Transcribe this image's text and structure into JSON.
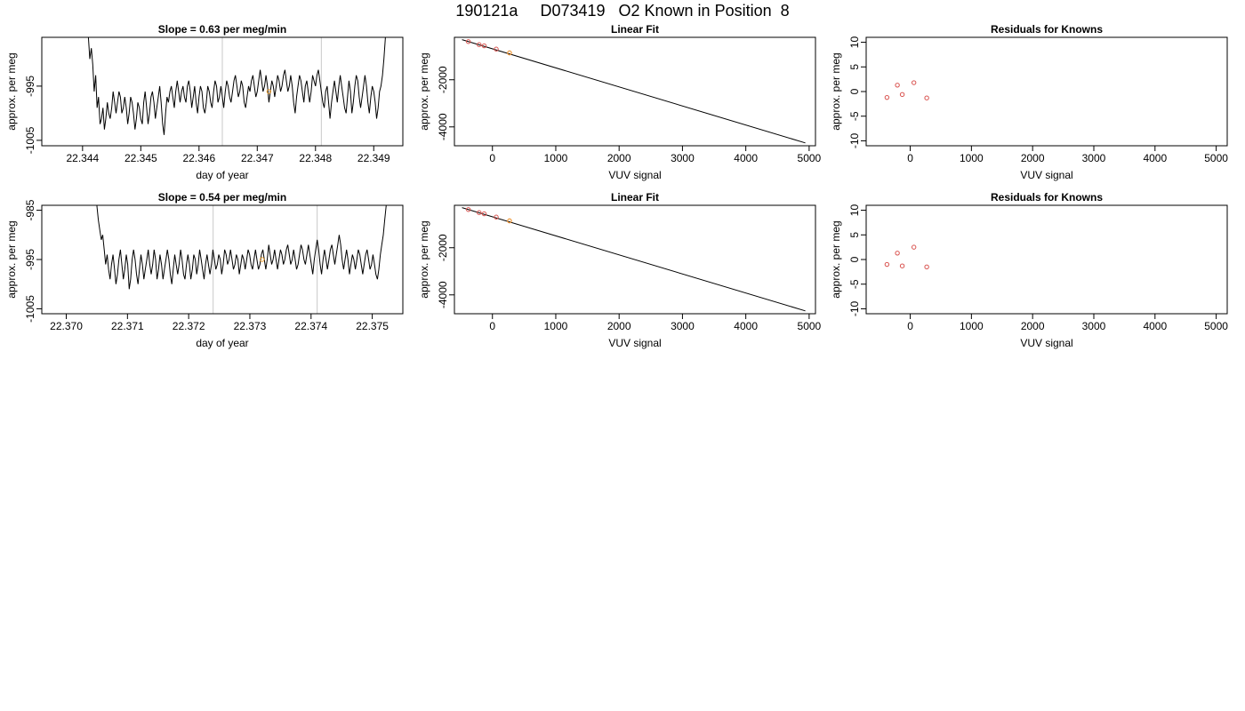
{
  "page": {
    "title": "190121a     D073419   O2 Known in Position  8"
  },
  "colors": {
    "trace": "#000000",
    "guide": "#c8c8c8",
    "known_point": "#d9534f",
    "sample_point": "#f0a030",
    "frame": "#000000"
  },
  "chart_data": [
    {
      "id": "trace-1",
      "type": "line",
      "title": "Slope =  0.63  per meg/min",
      "xlabel": "day of year",
      "ylabel": "approx. per meg",
      "xlim": [
        22.3433,
        22.3495
      ],
      "ylim": [
        -1006,
        -986
      ],
      "xticks": [
        22.344,
        22.345,
        22.346,
        22.347,
        22.348,
        22.349
      ],
      "xtick_labels": [
        "22.344",
        "22.345",
        "22.346",
        "22.347",
        "22.348",
        "22.349"
      ],
      "yticks": [
        -1005,
        -995
      ],
      "ytick_labels": [
        "-1005",
        "-995"
      ],
      "vlines": [
        22.3464,
        22.3481
      ],
      "series_x_start": 22.3441,
      "series_x_step": 2.5e-05,
      "series": [
        -986,
        -990,
        -988,
        -991,
        -996,
        -993,
        -999,
        -997,
        -1002,
        -1001,
        -999,
        -1003,
        -1001,
        -998,
        -1000,
        -1001,
        -999,
        -996,
        -998,
        -1000,
        -998,
        -996,
        -997,
        -1000,
        -999,
        -997,
        -999,
        -1002,
        -1000,
        -997,
        -998,
        -1000,
        -1003,
        -1001,
        -998,
        -999,
        -1001,
        -1002,
        -998,
        -996,
        -999,
        -1002,
        -1000,
        -997,
        -996,
        -998,
        -1001,
        -999,
        -997,
        -995,
        -998,
        -1002,
        -1004,
        -1000,
        -997,
        -998,
        -996,
        -995,
        -997,
        -999,
        -996,
        -994,
        -996,
        -998,
        -996,
        -995,
        -997,
        -998,
        -995,
        -994,
        -996,
        -999,
        -997,
        -995,
        -998,
        -1000,
        -997,
        -995,
        -996,
        -999,
        -1000,
        -998,
        -995,
        -996,
        -998,
        -999,
        -996,
        -994,
        -995,
        -998,
        -997,
        -995,
        -997,
        -999,
        -996,
        -994,
        -995,
        -997,
        -998,
        -996,
        -994,
        -993,
        -995,
        -997,
        -996,
        -994,
        -995,
        -998,
        -999,
        -997,
        -995,
        -996,
        -994,
        -993,
        -995,
        -997,
        -996,
        -994,
        -992,
        -994,
        -996,
        -995,
        -993,
        -995,
        -998,
        -996,
        -994,
        -995,
        -997,
        -995,
        -993,
        -994,
        -996,
        -995,
        -993,
        -992,
        -994,
        -996,
        -995,
        -993,
        -995,
        -998,
        -1000,
        -997,
        -995,
        -993,
        -994,
        -996,
        -998,
        -995,
        -994,
        -996,
        -998,
        -996,
        -993,
        -994,
        -995,
        -993,
        -992,
        -994,
        -996,
        -998,
        -999,
        -996,
        -995,
        -998,
        -1001,
        -998,
        -996,
        -994,
        -996,
        -998,
        -995,
        -993,
        -995,
        -997,
        -999,
        -1000,
        -997,
        -994,
        -996,
        -1000,
        -998,
        -995,
        -993,
        -994,
        -997,
        -999,
        -997,
        -995,
        -993,
        -995,
        -998,
        -1000,
        -997,
        -995,
        -996,
        -998,
        -1001,
        -999,
        -996,
        -995,
        -993,
        -990,
        -986
      ],
      "sample_points": [
        {
          "x": 22.3472,
          "y": -996
        }
      ]
    },
    {
      "id": "fit-1",
      "type": "scatter",
      "title": "Linear Fit",
      "xlabel": "VUV signal",
      "ylabel": "approx. per meg",
      "xlim": [
        -600,
        5100
      ],
      "ylim": [
        -4800,
        -200
      ],
      "xticks": [
        0,
        1000,
        2000,
        3000,
        4000,
        5000
      ],
      "xtick_labels": [
        "0",
        "1000",
        "2000",
        "3000",
        "4000",
        "5000"
      ],
      "yticks": [
        -4000,
        -2000
      ],
      "ytick_labels": [
        "-4000",
        "-2000"
      ],
      "fit_line": [
        [
          -480,
          -300
        ],
        [
          4940,
          -4680
        ]
      ],
      "known_points": [
        [
          -380,
          -380
        ],
        [
          -210,
          -510
        ],
        [
          -130,
          -560
        ],
        [
          60,
          -700
        ],
        [
          270,
          -860
        ]
      ],
      "sample_points": [
        [
          270,
          -860
        ]
      ]
    },
    {
      "id": "resid-1",
      "type": "scatter",
      "title": "Residuals for Knowns",
      "xlabel": "VUV signal",
      "ylabel": "approx. per meg",
      "xlim": [
        -720,
        5180
      ],
      "ylim": [
        -11,
        11
      ],
      "xticks": [
        0,
        1000,
        2000,
        3000,
        4000,
        5000
      ],
      "xtick_labels": [
        "0",
        "1000",
        "2000",
        "3000",
        "4000",
        "5000"
      ],
      "yticks": [
        -10,
        -5,
        0,
        5,
        10
      ],
      "ytick_labels": [
        "-10",
        "-5",
        "0",
        "5",
        "10"
      ],
      "points": [
        [
          -380,
          -1.2
        ],
        [
          -210,
          1.3
        ],
        [
          -130,
          -0.6
        ],
        [
          60,
          1.8
        ],
        [
          270,
          -1.3
        ]
      ]
    },
    {
      "id": "trace-2",
      "type": "line",
      "title": "Slope =  0.54  per meg/min",
      "xlabel": "day of year",
      "ylabel": "approx. per meg",
      "xlim": [
        22.3696,
        22.3755
      ],
      "ylim": [
        -1006,
        -984
      ],
      "xticks": [
        22.37,
        22.371,
        22.372,
        22.373,
        22.374,
        22.375
      ],
      "xtick_labels": [
        "22.370",
        "22.371",
        "22.372",
        "22.373",
        "22.374",
        "22.375"
      ],
      "yticks": [
        -1005,
        -995,
        -985
      ],
      "ytick_labels": [
        "-1005",
        "-995",
        "-985"
      ],
      "vlines": [
        22.3724,
        22.3741
      ],
      "series_x_start": 22.3705,
      "series_x_step": 2.4e-05,
      "series": [
        -984,
        -987,
        -989,
        -991,
        -990,
        -993,
        -996,
        -994,
        -997,
        -999,
        -996,
        -994,
        -997,
        -1000,
        -998,
        -995,
        -993,
        -996,
        -999,
        -997,
        -994,
        -996,
        -1001,
        -999,
        -995,
        -993,
        -995,
        -998,
        -1000,
        -997,
        -994,
        -996,
        -999,
        -997,
        -995,
        -993,
        -996,
        -998,
        -996,
        -993,
        -995,
        -999,
        -997,
        -994,
        -996,
        -999,
        -997,
        -995,
        -993,
        -995,
        -998,
        -1000,
        -997,
        -994,
        -996,
        -998,
        -996,
        -993,
        -995,
        -998,
        -999,
        -996,
        -994,
        -996,
        -999,
        -997,
        -994,
        -995,
        -998,
        -996,
        -993,
        -995,
        -997,
        -999,
        -996,
        -994,
        -996,
        -998,
        -996,
        -993,
        -995,
        -997,
        -996,
        -994,
        -995,
        -998,
        -996,
        -993,
        -994,
        -996,
        -995,
        -993,
        -995,
        -997,
        -996,
        -994,
        -995,
        -998,
        -996,
        -994,
        -995,
        -997,
        -995,
        -993,
        -994,
        -996,
        -997,
        -995,
        -993,
        -995,
        -997,
        -996,
        -994,
        -993,
        -995,
        -997,
        -995,
        -992,
        -994,
        -996,
        -995,
        -993,
        -995,
        -997,
        -995,
        -993,
        -994,
        -996,
        -995,
        -993,
        -992,
        -994,
        -996,
        -995,
        -993,
        -995,
        -997,
        -996,
        -994,
        -992,
        -993,
        -995,
        -996,
        -994,
        -992,
        -994,
        -996,
        -998,
        -995,
        -993,
        -991,
        -993,
        -996,
        -998,
        -995,
        -993,
        -995,
        -997,
        -995,
        -993,
        -992,
        -994,
        -996,
        -994,
        -992,
        -990,
        -992,
        -995,
        -997,
        -995,
        -993,
        -995,
        -998,
        -996,
        -994,
        -995,
        -997,
        -995,
        -993,
        -994,
        -996,
        -998,
        -996,
        -994,
        -993,
        -995,
        -997,
        -996,
        -994,
        -996,
        -998,
        -999,
        -997,
        -994,
        -992,
        -990,
        -987,
        -984
      ],
      "sample_points": [
        {
          "x": 22.3732,
          "y": -995
        }
      ]
    },
    {
      "id": "fit-2",
      "type": "scatter",
      "title": "Linear Fit",
      "xlabel": "VUV signal",
      "ylabel": "approx. per meg",
      "xlim": [
        -600,
        5100
      ],
      "ylim": [
        -4800,
        -200
      ],
      "xticks": [
        0,
        1000,
        2000,
        3000,
        4000,
        5000
      ],
      "xtick_labels": [
        "0",
        "1000",
        "2000",
        "3000",
        "4000",
        "5000"
      ],
      "yticks": [
        -4000,
        -2000
      ],
      "ytick_labels": [
        "-4000",
        "-2000"
      ],
      "fit_line": [
        [
          -480,
          -300
        ],
        [
          4940,
          -4680
        ]
      ],
      "known_points": [
        [
          -380,
          -380
        ],
        [
          -210,
          -510
        ],
        [
          -130,
          -560
        ],
        [
          60,
          -700
        ],
        [
          270,
          -860
        ]
      ],
      "sample_points": [
        [
          270,
          -860
        ]
      ]
    },
    {
      "id": "resid-2",
      "type": "scatter",
      "title": "Residuals for Knowns",
      "xlabel": "VUV signal",
      "ylabel": "approx. per meg",
      "xlim": [
        -720,
        5180
      ],
      "ylim": [
        -11,
        11
      ],
      "xticks": [
        0,
        1000,
        2000,
        3000,
        4000,
        5000
      ],
      "xtick_labels": [
        "0",
        "1000",
        "2000",
        "3000",
        "4000",
        "5000"
      ],
      "yticks": [
        -10,
        -5,
        0,
        5,
        10
      ],
      "ytick_labels": [
        "-10",
        "-5",
        "0",
        "5",
        "10"
      ],
      "points": [
        [
          -380,
          -1.0
        ],
        [
          -210,
          1.3
        ],
        [
          -130,
          -1.3
        ],
        [
          60,
          2.5
        ],
        [
          270,
          -1.5
        ]
      ]
    }
  ]
}
